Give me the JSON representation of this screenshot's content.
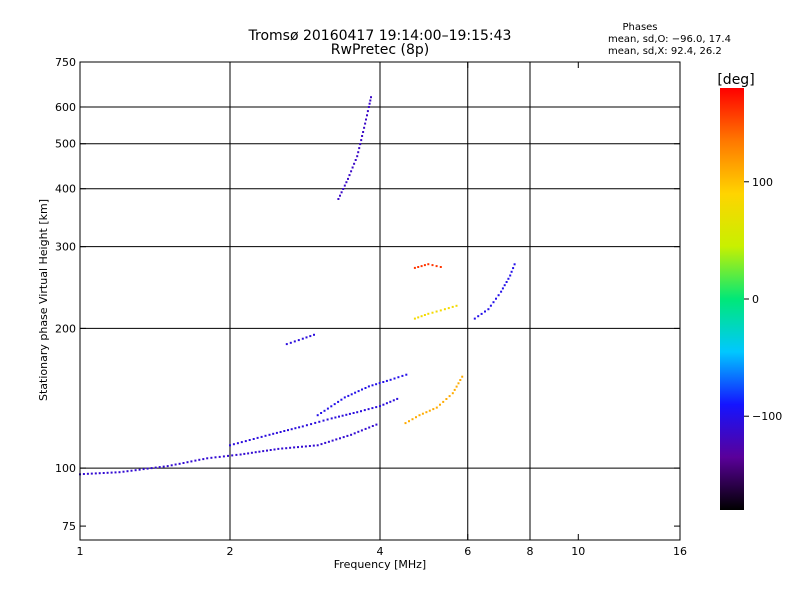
{
  "chart_data": {
    "type": "scatter",
    "title": "Tromsø 20160417 19:14:00–19:15:43",
    "subtitle": "RwPretec (8p)",
    "xlabel": "Frequency [MHz]",
    "ylabel": "Stationary phase Virtual Height [km]",
    "x_scale": "log",
    "y_scale": "log",
    "xlim": [
      1,
      16
    ],
    "ylim": [
      70,
      750
    ],
    "x_ticks": [
      1,
      2,
      4,
      6,
      8,
      10,
      16
    ],
    "x_tick_labels": [
      "1",
      "2",
      "4",
      "6",
      "8",
      "10",
      "16"
    ],
    "y_ticks": [
      75,
      100,
      200,
      300,
      400,
      500,
      600,
      750
    ],
    "y_tick_labels": [
      "75",
      "100",
      "200",
      "300",
      "400",
      "500",
      "600",
      "750"
    ],
    "grid": true,
    "grid_x": [
      2,
      4,
      6,
      8
    ],
    "grid_y": [
      100,
      200,
      300,
      400,
      500,
      600
    ],
    "stats": {
      "title": "Phases",
      "line1": "mean, sd,O: −96.0, 17.4",
      "line2": "mean, sd,X:  92.4, 26.2"
    },
    "colorbar": {
      "label": "[deg]",
      "min": -180,
      "max": 180,
      "ticks": [
        100,
        0,
        -100
      ],
      "tick_labels": [
        "100",
        "0",
        "−100"
      ],
      "colormap": "rainbow",
      "colors": [
        "#000000",
        "#5a009a",
        "#1414ff",
        "#00c8ff",
        "#00e878",
        "#c8f000",
        "#ffd400",
        "#ff7800",
        "#ff0000"
      ]
    },
    "series": [
      {
        "name": "",
        "phase": -110,
        "trace": [
          [
            1.0,
            97
          ],
          [
            1.2,
            98
          ],
          [
            1.5,
            101
          ],
          [
            1.8,
            105
          ],
          [
            2.1,
            107
          ],
          [
            2.5,
            110
          ],
          [
            3.0,
            112
          ],
          [
            3.5,
            118
          ],
          [
            4.0,
            125
          ]
        ]
      },
      {
        "name": "",
        "phase": -105,
        "trace": [
          [
            2.0,
            112
          ],
          [
            2.4,
            118
          ],
          [
            2.8,
            123
          ],
          [
            3.2,
            128
          ],
          [
            3.6,
            132
          ],
          [
            4.0,
            136
          ],
          [
            4.4,
            142
          ]
        ]
      },
      {
        "name": "",
        "phase": -100,
        "trace": [
          [
            3.0,
            130
          ],
          [
            3.4,
            142
          ],
          [
            3.8,
            150
          ],
          [
            4.2,
            155
          ],
          [
            4.6,
            160
          ]
        ]
      },
      {
        "name": "",
        "phase": -115,
        "trace": [
          [
            3.3,
            380
          ],
          [
            3.45,
            420
          ],
          [
            3.6,
            470
          ],
          [
            3.7,
            530
          ],
          [
            3.8,
            600
          ],
          [
            3.85,
            640
          ]
        ]
      },
      {
        "name": "",
        "phase": -105,
        "trace": [
          [
            2.6,
            185
          ],
          [
            2.8,
            190
          ],
          [
            3.0,
            195
          ]
        ]
      },
      {
        "name": "",
        "phase": 110,
        "trace": [
          [
            4.5,
            125
          ],
          [
            4.8,
            130
          ],
          [
            5.2,
            135
          ],
          [
            5.6,
            145
          ],
          [
            5.9,
            160
          ]
        ]
      },
      {
        "name": "",
        "phase": 80,
        "trace": [
          [
            4.7,
            210
          ],
          [
            5.0,
            215
          ],
          [
            5.4,
            220
          ],
          [
            5.8,
            225
          ]
        ]
      },
      {
        "name": "",
        "phase": 160,
        "trace": [
          [
            4.7,
            270
          ],
          [
            5.0,
            275
          ],
          [
            5.4,
            270
          ]
        ]
      },
      {
        "name": "",
        "phase": -100,
        "trace": [
          [
            6.2,
            210
          ],
          [
            6.6,
            220
          ],
          [
            7.0,
            240
          ],
          [
            7.3,
            260
          ],
          [
            7.5,
            280
          ]
        ]
      }
    ]
  }
}
